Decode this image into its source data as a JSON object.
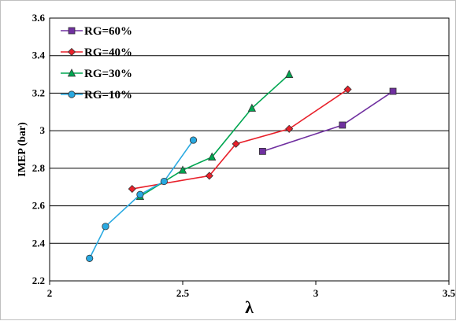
{
  "chart_data": {
    "type": "line",
    "title": "",
    "xlabel": "λ",
    "ylabel": "IMEP (bar)",
    "xlim": [
      2,
      3.5
    ],
    "ylim": [
      2.2,
      3.6
    ],
    "x_ticks": [
      2,
      2.5,
      3,
      3.5
    ],
    "x_tick_labels": [
      "2",
      "2.5",
      "3",
      "3.5"
    ],
    "y_ticks": [
      2.2,
      2.4,
      2.6,
      2.8,
      3.0,
      3.2,
      3.4,
      3.6
    ],
    "y_tick_labels": [
      "2.2",
      "2.4",
      "2.6",
      "2.8",
      "3",
      "3.2",
      "3.4",
      "3.6"
    ],
    "grid": "horizontal",
    "legend_position": "top-left",
    "series": [
      {
        "name": "RG=60%",
        "color": "#7030a0",
        "marker": "square",
        "points": [
          [
            2.8,
            2.89
          ],
          [
            3.1,
            3.03
          ],
          [
            3.29,
            3.21
          ]
        ]
      },
      {
        "name": "RG=40%",
        "color": "#e8202a",
        "marker": "diamond",
        "points": [
          [
            2.31,
            2.69
          ],
          [
            2.6,
            2.76
          ],
          [
            2.7,
            2.93
          ],
          [
            2.9,
            3.01
          ],
          [
            3.12,
            3.22
          ]
        ]
      },
      {
        "name": "RG=30%",
        "color": "#00a651",
        "marker": "triangle",
        "points": [
          [
            2.34,
            2.65
          ],
          [
            2.5,
            2.79
          ],
          [
            2.61,
            2.86
          ],
          [
            2.76,
            3.12
          ],
          [
            2.9,
            3.3
          ]
        ]
      },
      {
        "name": "RG=10%",
        "color": "#29a9e1",
        "marker": "circle",
        "points": [
          [
            2.15,
            2.32
          ],
          [
            2.21,
            2.49
          ],
          [
            2.34,
            2.66
          ],
          [
            2.43,
            2.73
          ],
          [
            2.54,
            2.95
          ]
        ]
      }
    ]
  }
}
